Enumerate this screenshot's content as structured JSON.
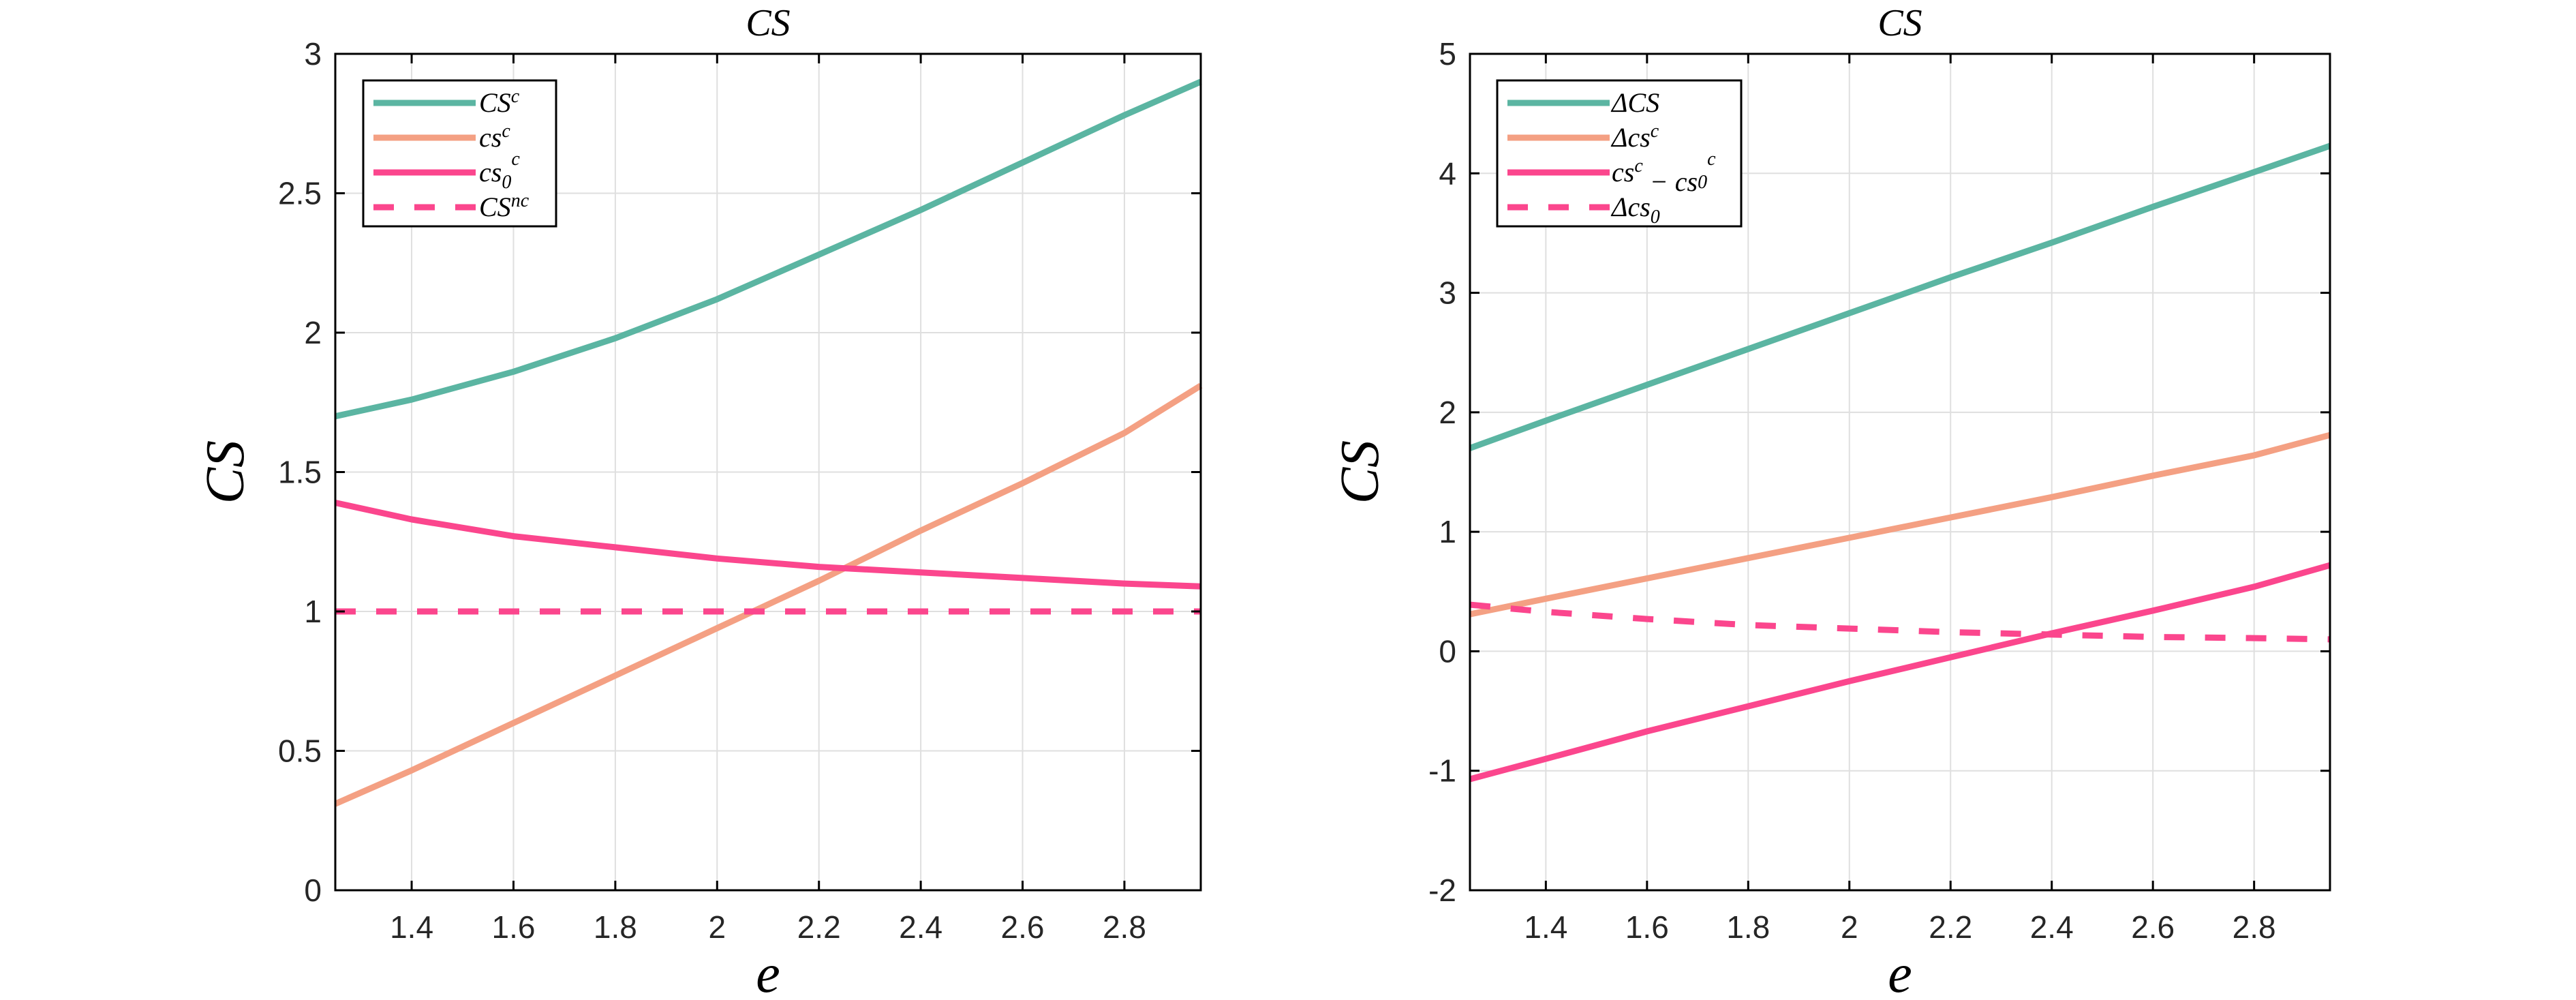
{
  "chart_data": [
    {
      "type": "line",
      "title": "CS",
      "xlabel": "e",
      "ylabel": "CS",
      "xlim": [
        1.25,
        2.95
      ],
      "ylim": [
        0,
        3
      ],
      "xticks": [
        1.4,
        1.6,
        1.8,
        2,
        2.2,
        2.4,
        2.6,
        2.8
      ],
      "xtick_labels": [
        "1.4",
        "1.6",
        "1.8",
        "2",
        "2.2",
        "2.4",
        "2.6",
        "2.8"
      ],
      "yticks": [
        0,
        0.5,
        1,
        1.5,
        2,
        2.5,
        3
      ],
      "ytick_labels": [
        "0",
        "0.5",
        "1",
        "1.5",
        "2",
        "2.5",
        "3"
      ],
      "grid": true,
      "legend_position": "top-left",
      "x": [
        1.25,
        1.4,
        1.6,
        1.8,
        2.0,
        2.2,
        2.4,
        2.6,
        2.8,
        2.95
      ],
      "series": [
        {
          "name": "CS^c",
          "legend": {
            "base": "CS",
            "sup": "c",
            "sub": ""
          },
          "color": "#5bb5a2",
          "dashed": false,
          "values": [
            1.7,
            1.76,
            1.86,
            1.98,
            2.12,
            2.28,
            2.44,
            2.61,
            2.78,
            2.9
          ]
        },
        {
          "name": "cs^c",
          "legend": {
            "base": "cs",
            "sup": "c",
            "sub": ""
          },
          "color": "#f4a083",
          "dashed": false,
          "values": [
            0.31,
            0.43,
            0.6,
            0.77,
            0.94,
            1.11,
            1.29,
            1.46,
            1.64,
            1.81
          ]
        },
        {
          "name": "cs_0^c",
          "legend": {
            "base": "cs",
            "sup": "c",
            "sub": "0"
          },
          "color": "#fb468d",
          "dashed": false,
          "values": [
            1.39,
            1.33,
            1.27,
            1.23,
            1.19,
            1.16,
            1.14,
            1.12,
            1.1,
            1.09
          ]
        },
        {
          "name": "CS^nc",
          "legend": {
            "base": "CS",
            "sup": "nc",
            "sub": ""
          },
          "color": "#fb468d",
          "dashed": true,
          "values": [
            1.0,
            1.0,
            1.0,
            1.0,
            1.0,
            1.0,
            1.0,
            1.0,
            1.0,
            1.0
          ]
        }
      ]
    },
    {
      "type": "line",
      "title": "CS",
      "xlabel": "e",
      "ylabel": "CS",
      "xlim": [
        1.25,
        2.95
      ],
      "ylim": [
        -2,
        5
      ],
      "xticks": [
        1.4,
        1.6,
        1.8,
        2,
        2.2,
        2.4,
        2.6,
        2.8
      ],
      "xtick_labels": [
        "1.4",
        "1.6",
        "1.8",
        "2",
        "2.2",
        "2.4",
        "2.6",
        "2.8"
      ],
      "yticks": [
        -2,
        -1,
        0,
        1,
        2,
        3,
        4,
        5
      ],
      "ytick_labels": [
        "-2",
        "-1",
        "0",
        "1",
        "2",
        "3",
        "4",
        "5"
      ],
      "grid": true,
      "legend_position": "top-left",
      "x": [
        1.25,
        1.4,
        1.6,
        1.8,
        2.0,
        2.2,
        2.4,
        2.6,
        2.8,
        2.95
      ],
      "series": [
        {
          "name": "ΔCS",
          "legend": {
            "base": "ΔCS",
            "sup": "",
            "sub": ""
          },
          "color": "#5bb5a2",
          "dashed": false,
          "values": [
            1.7,
            1.93,
            2.23,
            2.53,
            2.83,
            3.13,
            3.42,
            3.72,
            4.01,
            4.23
          ]
        },
        {
          "name": "Δcs^c",
          "legend": {
            "base": "Δcs",
            "sup": "c",
            "sub": ""
          },
          "color": "#f4a083",
          "dashed": false,
          "values": [
            0.31,
            0.44,
            0.61,
            0.78,
            0.95,
            1.12,
            1.29,
            1.47,
            1.64,
            1.81
          ]
        },
        {
          "name": "cs^c − cs_0^c",
          "legend": {
            "base": "cs",
            "sup": "c",
            "sub": "",
            "tail": " − cs",
            "tail_sub": "0",
            "tail_sup": "c"
          },
          "color": "#fb468d",
          "dashed": false,
          "values": [
            -1.07,
            -0.9,
            -0.67,
            -0.46,
            -0.25,
            -0.05,
            0.15,
            0.34,
            0.54,
            0.72
          ]
        },
        {
          "name": "Δcs_0",
          "legend": {
            "base": "Δcs",
            "sup": "",
            "sub": "0"
          },
          "color": "#fb468d",
          "dashed": true,
          "values": [
            0.39,
            0.33,
            0.27,
            0.22,
            0.19,
            0.16,
            0.14,
            0.12,
            0.11,
            0.1
          ]
        }
      ]
    }
  ]
}
